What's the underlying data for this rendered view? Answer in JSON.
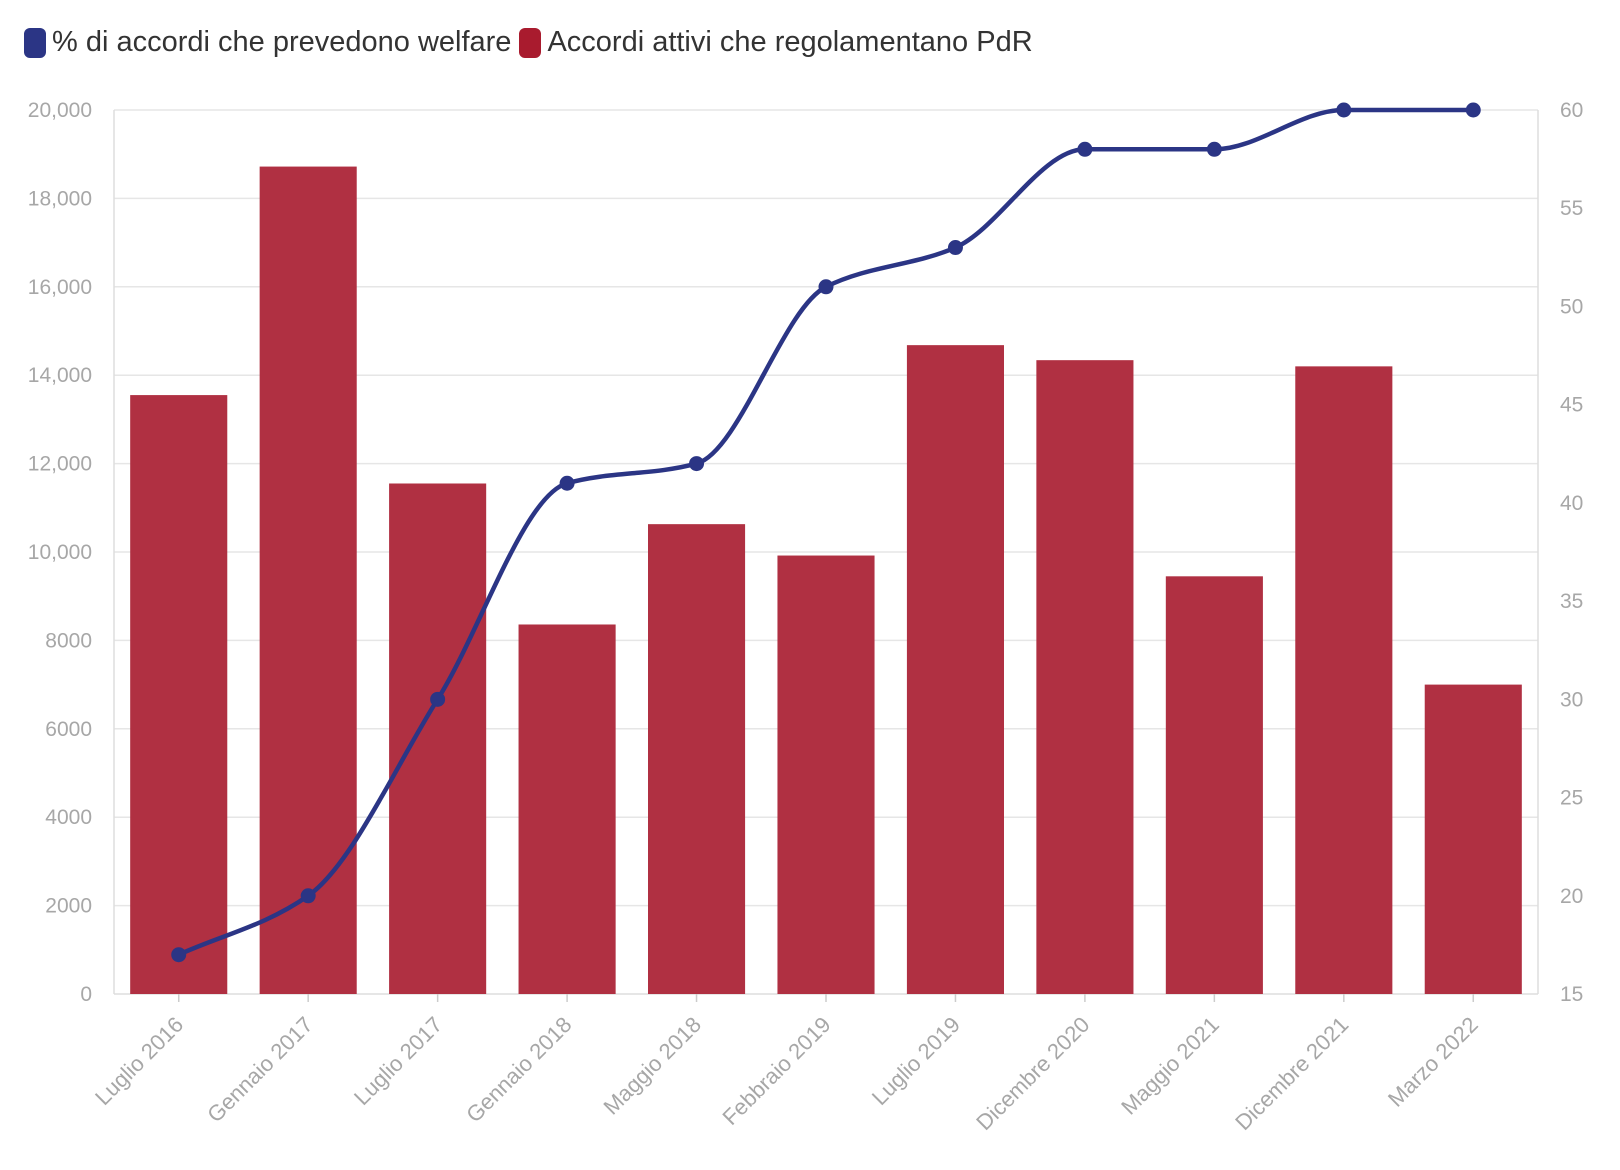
{
  "legend": [
    {
      "label": "% di accordi che prevedono welfare",
      "color": "#2b3585"
    },
    {
      "label": "Accordi attivi che regolamentano PdR",
      "color": "#a91b2e"
    }
  ],
  "chart_data": {
    "type": "bar",
    "categories": [
      "Luglio 2016",
      "Gennaio 2017",
      "Luglio 2017",
      "Gennaio 2018",
      "Maggio 2018",
      "Febbraio 2019",
      "Luglio 2019",
      "Dicembre 2020",
      "Maggio 2021",
      "Dicembre 2021",
      "Marzo 2022"
    ],
    "series": [
      {
        "name": "Accordi attivi che regolamentano PdR",
        "type": "bar",
        "axis": "left",
        "color": "#b03042",
        "values": [
          13550,
          18720,
          11550,
          8360,
          10630,
          9920,
          14680,
          14340,
          9450,
          14200,
          7000
        ]
      },
      {
        "name": "% di accordi che prevedono welfare",
        "type": "line",
        "axis": "right",
        "color": "#2b3585",
        "values": [
          17,
          20,
          30,
          41,
          42,
          51,
          53,
          58,
          58,
          60,
          60
        ]
      }
    ],
    "y_left": {
      "range": [
        0,
        20000
      ],
      "ticks": [
        0,
        2000,
        4000,
        6000,
        8000,
        10000,
        12000,
        14000,
        16000,
        18000,
        20000
      ],
      "tick_labels": [
        "0",
        "2000",
        "4000",
        "6000",
        "8000",
        "10,000",
        "12,000",
        "14,000",
        "16,000",
        "18,000",
        "20,000"
      ]
    },
    "y_right": {
      "range": [
        15,
        60
      ],
      "ticks": [
        15,
        20,
        25,
        30,
        35,
        40,
        45,
        50,
        55,
        60
      ],
      "tick_labels": [
        "15",
        "20",
        "25",
        "30",
        "35",
        "40",
        "45",
        "50",
        "55",
        "60"
      ]
    },
    "grid": true,
    "legend_position": "top-left"
  }
}
